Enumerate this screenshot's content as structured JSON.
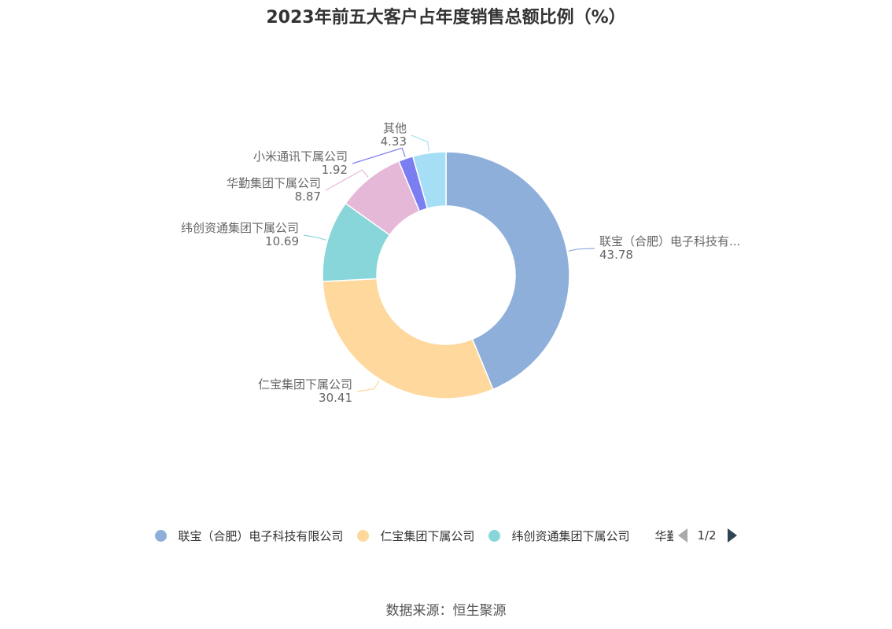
{
  "title": "2023年前五大客户占年度销售总额比例（%）",
  "source": "数据来源：恒生聚源",
  "legend": {
    "page": "1/2",
    "visible": [
      {
        "name": "联宝（合肥）电子科技有限公司",
        "color": "#8fafdb"
      },
      {
        "name": "仁宝集团下属公司",
        "color": "#fed89c"
      },
      {
        "name": "纬创资通集团下属公司",
        "color": "#88d6d9"
      },
      {
        "name": "华勤集团下属公司",
        "color": "#e6b8d8"
      }
    ]
  },
  "chart_data": {
    "type": "pie",
    "donut": true,
    "title": "2023年前五大客户占年度销售总额比例（%）",
    "slices": [
      {
        "name": "联宝（合肥）电子科技有限公司",
        "label": "联宝（合肥）电子科技有...",
        "value": 43.78,
        "color": "#8fafdb"
      },
      {
        "name": "仁宝集团下属公司",
        "label": "仁宝集团下属公司",
        "value": 30.41,
        "color": "#fed89c"
      },
      {
        "name": "纬创资通集团下属公司",
        "label": "纬创资通集团下属公司",
        "value": 10.69,
        "color": "#88d6d9"
      },
      {
        "name": "华勤集团下属公司",
        "label": "华勤集团下属公司",
        "value": 8.87,
        "color": "#e6b8d8"
      },
      {
        "name": "小米通讯下属公司",
        "label": "小米通讯下属公司",
        "value": 1.92,
        "color": "#7b7ef0"
      },
      {
        "name": "其他",
        "label": "其他",
        "value": 4.33,
        "color": "#a6def6"
      }
    ],
    "legend_position": "bottom"
  }
}
